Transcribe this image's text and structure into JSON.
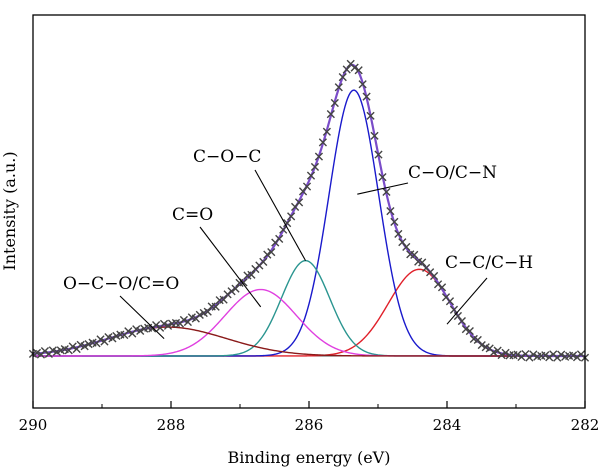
{
  "chart_data": {
    "type": "line",
    "xlabel": "Binding energy (eV)",
    "ylabel": "Intensity (a.u.)",
    "xlim": [
      290,
      282
    ],
    "ylim": [
      -0.18,
      1.18
    ],
    "x_reversed": true,
    "y_ticks_shown": false,
    "grid": false,
    "x_ticks": [
      "290",
      "288",
      "286",
      "284",
      "282"
    ],
    "annotations": [
      {
        "text": "O−C−O/C=O",
        "target_x": 288.1,
        "target_y": 0.06
      },
      {
        "text": "C=O",
        "target_x": 286.7,
        "target_y": 0.17
      },
      {
        "text": "C−O−C",
        "target_x": 286.05,
        "target_y": 0.33
      },
      {
        "text": "C−O/C−N",
        "target_x": 285.3,
        "target_y": 0.56
      },
      {
        "text": "C−C/C−H",
        "target_x": 284.0,
        "target_y": 0.11
      }
    ],
    "components": [
      {
        "label": "C−C/C−H",
        "center": 284.4,
        "amplitude": 0.3,
        "sigma": 0.45,
        "color": "#e0202a"
      },
      {
        "label": "C−O/C−N",
        "center": 285.35,
        "amplitude": 0.92,
        "sigma": 0.36,
        "color": "#1a1acc"
      },
      {
        "label": "C−O−C",
        "center": 286.05,
        "amplitude": 0.33,
        "sigma": 0.35,
        "color": "#2a9590"
      },
      {
        "label": "C=O",
        "center": 286.7,
        "amplitude": 0.23,
        "sigma": 0.52,
        "color": "#e040e0"
      },
      {
        "label": "O−C−O/C=O",
        "center": 288.05,
        "amplitude": 0.1,
        "sigma": 0.85,
        "color": "#8a1a1a"
      }
    ],
    "envelope_color": "#7a4cc8",
    "raw_marker": "×",
    "raw_color": "#444444",
    "raw_x_range": [
      290,
      282
    ],
    "raw_points": 140
  }
}
